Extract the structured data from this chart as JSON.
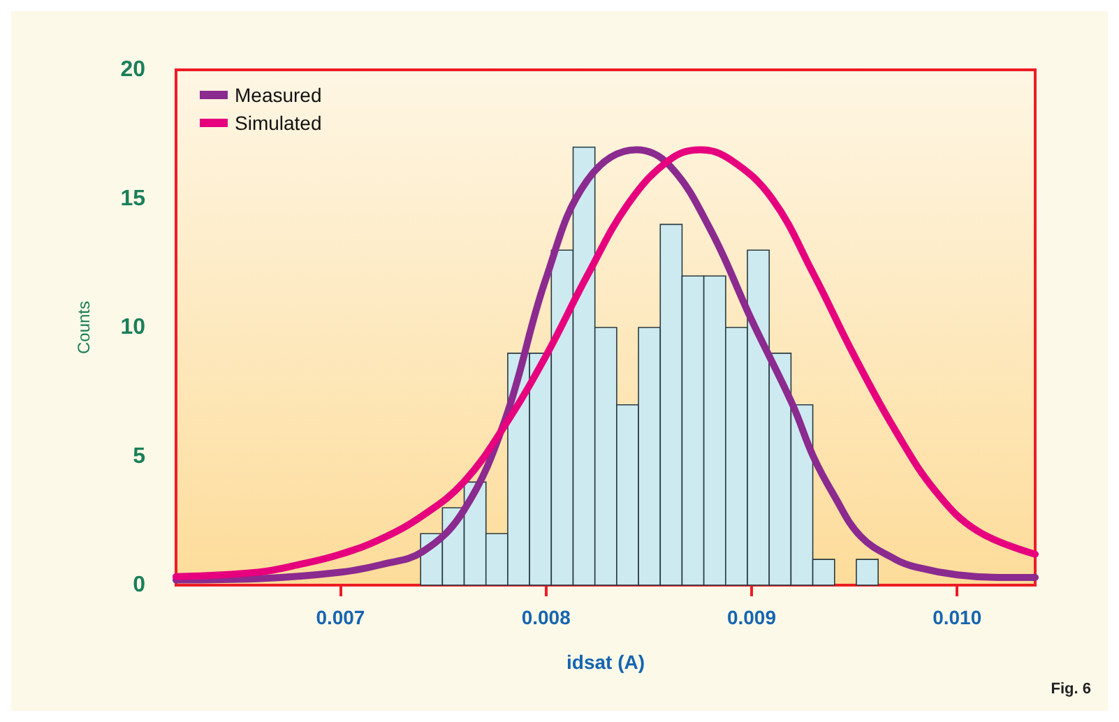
{
  "chart_data": {
    "type": "histogram",
    "xlabel": "idsat (A)",
    "ylabel": "Counts",
    "annotations": [
      "Fig. 6"
    ],
    "bins": [
      0.00739,
      0.007496,
      0.007602,
      0.007708,
      0.007814,
      0.00792,
      0.008026,
      0.008132,
      0.008238,
      0.008344,
      0.00845,
      0.008556,
      0.008662,
      0.008768,
      0.008874,
      0.00898,
      0.009086,
      0.009192,
      0.009298,
      0.009404,
      0.00951,
      0.009616
    ],
    "values": [
      2,
      3,
      4,
      2,
      9,
      9,
      13,
      17,
      10,
      7,
      10,
      14,
      12,
      12,
      10,
      13,
      9,
      7,
      1,
      0,
      1
    ],
    "color": "#cdeaf1",
    "series": [
      {
        "name": "Measured",
        "type": "line",
        "color": "#8b2a8f",
        "x": [
          0.0062,
          0.0066,
          0.007,
          0.0072,
          0.0074,
          0.0076,
          0.0078,
          0.008,
          0.0082,
          0.00844,
          0.0086,
          0.0088,
          0.009,
          0.0092,
          0.0093,
          0.0094,
          0.00953,
          0.0097,
          0.0098,
          0.01,
          0.0102,
          0.01038
        ],
        "values": [
          0.2,
          0.25,
          0.5,
          0.8,
          1.3,
          2.9,
          6.4,
          11.9,
          15.7,
          16.9,
          16.3,
          13.8,
          10.3,
          7,
          5,
          3.5,
          1.9,
          1,
          0.7,
          0.4,
          0.3,
          0.3
        ]
      },
      {
        "name": "Simulated",
        "type": "line",
        "color": "#e6007e",
        "x": [
          0.0062,
          0.0066,
          0.0068,
          0.007,
          0.0072,
          0.0074,
          0.0076,
          0.0078,
          0.008,
          0.0082,
          0.0084,
          0.0086,
          0.00875,
          0.0089,
          0.0091,
          0.0093,
          0.0095,
          0.0097,
          0.0099,
          0.0101,
          0.01038
        ],
        "values": [
          0.33,
          0.5,
          0.8,
          1.2,
          1.8,
          2.7,
          4,
          6.2,
          8.9,
          12,
          14.8,
          16.5,
          16.9,
          16.5,
          15,
          12.1,
          8.9,
          6,
          3.6,
          2.1,
          1.2
        ]
      }
    ],
    "xlim": [
      0.0062,
      0.01038
    ],
    "xticks": [
      {
        "value": 0.007,
        "label": "0.007"
      },
      {
        "value": 0.008,
        "label": "0.008"
      },
      {
        "value": 0.009,
        "label": "0.009"
      },
      {
        "value": 0.01,
        "label": "0.010"
      }
    ],
    "ylim": [
      0,
      20
    ],
    "yticks": [
      0,
      5,
      10,
      15,
      20
    ],
    "grid": false,
    "legend": "top left",
    "marker": "none",
    "line_style": "solid"
  }
}
